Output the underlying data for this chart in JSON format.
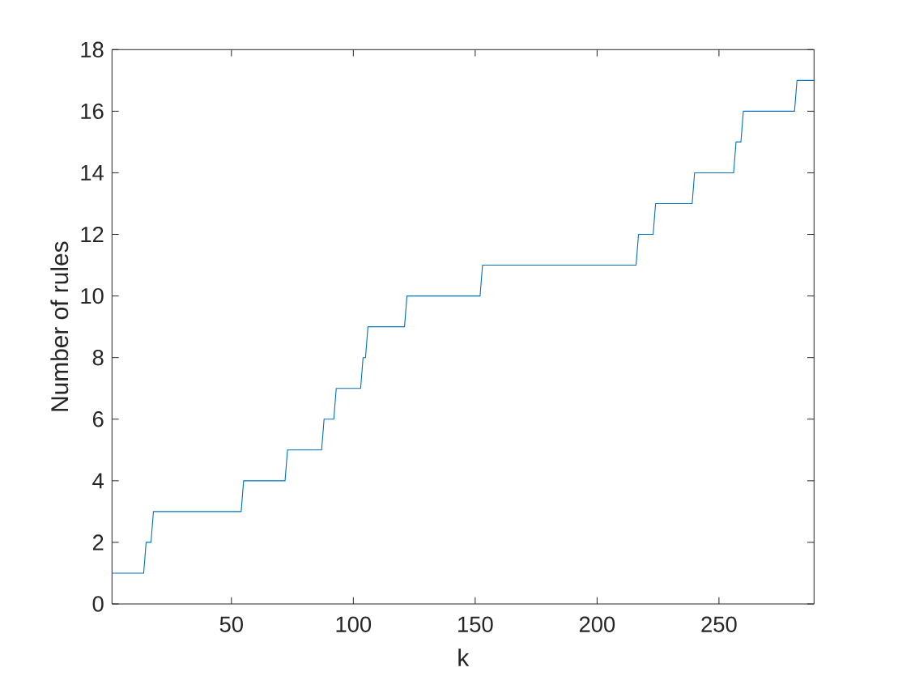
{
  "chart_data": {
    "type": "line",
    "xlabel": "k",
    "ylabel": "Number of rules",
    "x": [
      1,
      14,
      15,
      17,
      18,
      54,
      55,
      72,
      73,
      87,
      88,
      92,
      93,
      103,
      104,
      105,
      106,
      121,
      122,
      152,
      153,
      216,
      217,
      223,
      224,
      239,
      240,
      256,
      257,
      259,
      260,
      281,
      282,
      289
    ],
    "series": [
      {
        "color": "#0072bd",
        "values": [
          1,
          1,
          2,
          2,
          3,
          3,
          4,
          4,
          5,
          5,
          6,
          6,
          7,
          7,
          8,
          8,
          9,
          9,
          10,
          10,
          11,
          11,
          12,
          12,
          13,
          13,
          14,
          14,
          15,
          15,
          16,
          16,
          17,
          17
        ]
      }
    ],
    "xlim": [
      1,
      289
    ],
    "ylim": [
      0,
      18
    ],
    "xticks": [
      50,
      100,
      150,
      200,
      250
    ],
    "yticks": [
      0,
      2,
      4,
      6,
      8,
      10,
      12,
      14,
      16,
      18
    ],
    "marker": "none",
    "line_style": "solid"
  }
}
